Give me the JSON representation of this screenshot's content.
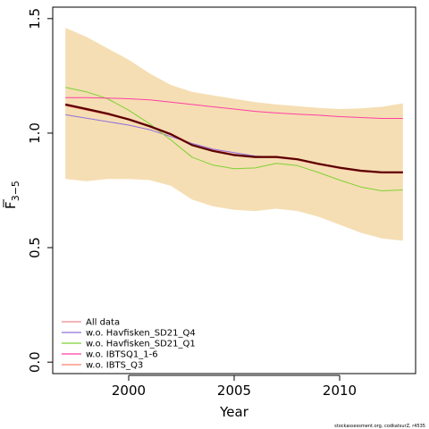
{
  "chart_data": {
    "type": "line",
    "xlabel": "Year",
    "ylabel_main": "F",
    "ylabel_sub": "3−5",
    "xlim": [
      1996.4,
      2013.6
    ],
    "ylim": [
      -0.05,
      1.55
    ],
    "x_ticks": [
      2000,
      2005,
      2010
    ],
    "y_ticks": [
      0.0,
      0.5,
      1.0,
      1.5
    ],
    "x_tick_labels": [
      "2000",
      "2005",
      "2010"
    ],
    "y_tick_labels": [
      "0.0",
      "0.5",
      "1.0",
      "1.5"
    ],
    "grid": false,
    "legend_position": "bottom-left",
    "credit": "stockassessment.org, codkatsurZ, r4535",
    "x": [
      1997,
      1998,
      1999,
      2000,
      2001,
      2002,
      2003,
      2004,
      2005,
      2006,
      2007,
      2008,
      2009,
      2010,
      2011,
      2012,
      2013
    ],
    "band": {
      "color": "#f5deb3",
      "upper": [
        1.46,
        1.42,
        1.37,
        1.32,
        1.26,
        1.21,
        1.18,
        1.165,
        1.15,
        1.135,
        1.125,
        1.118,
        1.11,
        1.105,
        1.108,
        1.115,
        1.13
      ],
      "lower": [
        0.8,
        0.79,
        0.8,
        0.8,
        0.795,
        0.77,
        0.71,
        0.68,
        0.665,
        0.66,
        0.67,
        0.66,
        0.635,
        0.6,
        0.565,
        0.54,
        0.53
      ]
    },
    "series": [
      {
        "name": "All data",
        "color": "#ef8a8a",
        "width": 2.5,
        "values": [
          1.125,
          1.105,
          1.085,
          1.06,
          1.03,
          0.995,
          0.95,
          0.925,
          0.905,
          0.895,
          0.895,
          0.885,
          0.865,
          0.848,
          0.835,
          0.828,
          0.828
        ]
      },
      {
        "name": "w.o. Havfisken_SD21_Q4",
        "color": "#9370db",
        "width": 1.0,
        "values": [
          1.08,
          1.065,
          1.05,
          1.035,
          1.015,
          0.985,
          0.955,
          0.93,
          0.915,
          0.9,
          0.895,
          0.885,
          0.865,
          0.848,
          0.835,
          0.828,
          0.828
        ]
      },
      {
        "name": "w.o. Havfisken_SD21_Q1",
        "color": "#7fd135",
        "width": 1.0,
        "values": [
          1.2,
          1.18,
          1.15,
          1.1,
          1.04,
          0.97,
          0.895,
          0.86,
          0.845,
          0.848,
          0.868,
          0.858,
          0.828,
          0.795,
          0.765,
          0.748,
          0.752
        ]
      },
      {
        "name": "w.o. IBTSQ1_1-6",
        "color": "#ff3fa4",
        "width": 1.0,
        "values": [
          1.155,
          1.155,
          1.153,
          1.15,
          1.145,
          1.135,
          1.125,
          1.115,
          1.105,
          1.095,
          1.088,
          1.083,
          1.078,
          1.072,
          1.068,
          1.064,
          1.064
        ]
      },
      {
        "name": "w.o. IBTS_Q3",
        "color": "#fa8072",
        "width": 1.0,
        "values": [
          1.12,
          1.1,
          1.08,
          1.058,
          1.028,
          0.992,
          0.948,
          0.922,
          0.903,
          0.894,
          0.894,
          0.884,
          0.864,
          0.847,
          0.834,
          0.827,
          0.827
        ]
      }
    ],
    "main_line": {
      "color": "#5a0000",
      "width": 2.2,
      "values": [
        1.125,
        1.105,
        1.085,
        1.06,
        1.03,
        0.995,
        0.948,
        0.922,
        0.904,
        0.896,
        0.896,
        0.886,
        0.866,
        0.849,
        0.836,
        0.829,
        0.829
      ]
    }
  }
}
